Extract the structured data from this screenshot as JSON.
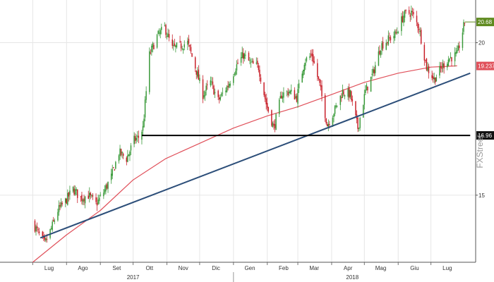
{
  "colors": {
    "background": "#ffffff",
    "grid": "#e6e6e6",
    "candle_up": "#3a9a3a",
    "candle_down": "#c8202a",
    "moving_average": "#e0505a",
    "trendline": "#2c4e79",
    "support": "#000000",
    "last_price_tag": "#5e8a1e",
    "ma_tag": "#e0505a",
    "support_tag": "#111111",
    "watermark": "#9a9a9a"
  },
  "watermark": "FXStreet",
  "chart_data": {
    "type": "candlestick",
    "title": "",
    "xlabel": "",
    "ylabel": "",
    "ylim": [
      12.8,
      21.4
    ],
    "y_ticks": [
      15,
      20
    ],
    "grid": true,
    "months": [
      "Lug",
      "Ago",
      "Set",
      "Ott",
      "Nov",
      "Dic",
      "Gen",
      "Feb",
      "Mar",
      "Apr",
      "Mag",
      "Giu",
      "Lug"
    ],
    "years": [
      "2017",
      "2018"
    ],
    "last_price": 20.68,
    "moving_average_value": 19.237,
    "support_level": 16.96,
    "tags": {
      "last_price": "20.68",
      "moving_average": "19.237",
      "support": "16.96"
    },
    "close_path": [
      [
        "2017-07-01",
        14.1
      ],
      [
        "2017-07-07",
        13.7
      ],
      [
        "2017-07-12",
        13.4
      ],
      [
        "2017-07-18",
        13.9
      ],
      [
        "2017-07-24",
        14.5
      ],
      [
        "2017-07-31",
        14.8
      ],
      [
        "2017-08-07",
        15.2
      ],
      [
        "2017-08-14",
        14.9
      ],
      [
        "2017-08-21",
        15.0
      ],
      [
        "2017-08-28",
        14.7
      ],
      [
        "2017-09-04",
        15.1
      ],
      [
        "2017-09-11",
        15.6
      ],
      [
        "2017-09-18",
        16.4
      ],
      [
        "2017-09-25",
        16.2
      ],
      [
        "2017-10-02",
        16.8
      ],
      [
        "2017-10-06",
        16.9
      ],
      [
        "2017-10-10",
        17.2
      ],
      [
        "2017-10-16",
        19.6
      ],
      [
        "2017-10-23",
        20.2
      ],
      [
        "2017-10-30",
        20.5
      ],
      [
        "2017-11-06",
        19.8
      ],
      [
        "2017-11-13",
        19.9
      ],
      [
        "2017-11-20",
        20.0
      ],
      [
        "2017-11-27",
        19.2
      ],
      [
        "2017-12-04",
        18.3
      ],
      [
        "2017-12-11",
        18.7
      ],
      [
        "2017-12-18",
        18.1
      ],
      [
        "2017-12-27",
        18.6
      ],
      [
        "2018-01-03",
        19.2
      ],
      [
        "2018-01-10",
        19.6
      ],
      [
        "2018-01-17",
        19.3
      ],
      [
        "2018-01-24",
        19.2
      ],
      [
        "2018-01-31",
        18.0
      ],
      [
        "2018-02-07",
        17.2
      ],
      [
        "2018-02-14",
        18.3
      ],
      [
        "2018-02-21",
        18.4
      ],
      [
        "2018-02-28",
        18.2
      ],
      [
        "2018-03-07",
        19.4
      ],
      [
        "2018-03-14",
        19.6
      ],
      [
        "2018-03-21",
        18.6
      ],
      [
        "2018-03-28",
        17.3
      ],
      [
        "2018-04-04",
        17.8
      ],
      [
        "2018-04-11",
        18.4
      ],
      [
        "2018-04-18",
        18.3
      ],
      [
        "2018-04-25",
        17.2
      ],
      [
        "2018-05-02",
        18.4
      ],
      [
        "2018-05-09",
        19.0
      ],
      [
        "2018-05-16",
        19.9
      ],
      [
        "2018-05-23",
        20.1
      ],
      [
        "2018-05-30",
        20.3
      ],
      [
        "2018-06-06",
        20.9
      ],
      [
        "2018-06-13",
        21.0
      ],
      [
        "2018-06-20",
        20.5
      ],
      [
        "2018-06-27",
        19.2
      ],
      [
        "2018-07-04",
        18.8
      ],
      [
        "2018-07-11",
        19.2
      ],
      [
        "2018-07-18",
        19.5
      ],
      [
        "2018-07-25",
        19.6
      ],
      [
        "2018-08-01",
        20.68
      ]
    ],
    "series": [
      {
        "name": "",
        "type": "line",
        "values": [
          [
            "2017-07-01",
            12.8
          ],
          [
            "2017-08-01",
            13.7
          ],
          [
            "2017-09-01",
            14.5
          ],
          [
            "2017-10-01",
            15.5
          ],
          [
            "2017-10-31",
            16.2
          ],
          [
            "2017-12-01",
            16.7
          ],
          [
            "2018-01-01",
            17.2
          ],
          [
            "2018-02-01",
            17.6
          ],
          [
            "2018-03-01",
            17.9
          ],
          [
            "2018-04-01",
            18.3
          ],
          [
            "2018-05-01",
            18.7
          ],
          [
            "2018-06-01",
            19.0
          ],
          [
            "2018-07-01",
            19.2
          ],
          [
            "2018-07-25",
            19.24
          ]
        ]
      },
      {
        "name": "",
        "type": "trendline",
        "values": [
          [
            "2017-07-08",
            13.6
          ],
          [
            "2018-08-06",
            19.0
          ]
        ]
      },
      {
        "name": "",
        "type": "hline",
        "values": [
          [
            "2017-10-09",
            16.96
          ],
          [
            "2018-08-06",
            16.96
          ]
        ]
      }
    ]
  }
}
